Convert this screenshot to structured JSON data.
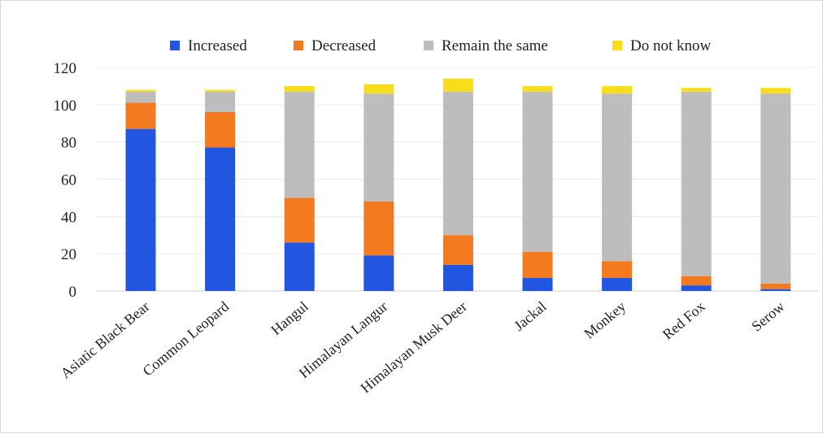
{
  "chart_data": {
    "type": "bar",
    "stacked": true,
    "categories": [
      "Asiatic Black Bear",
      "Common Leopard",
      "Hangul",
      "Himalayan Langur",
      "Himalayan Musk Deer",
      "Jackal",
      "Monkey",
      "Red Fox",
      "Serow"
    ],
    "series": [
      {
        "name": "Increased",
        "color": "#2255e0",
        "values": [
          87,
          77,
          26,
          19,
          14,
          7,
          7,
          3,
          1
        ]
      },
      {
        "name": "Decreased",
        "color": "#f47a20",
        "values": [
          14,
          19,
          24,
          29,
          16,
          14,
          9,
          5,
          3
        ]
      },
      {
        "name": "Remain the same",
        "color": "#bdbdbd",
        "values": [
          6,
          11,
          57,
          58,
          77,
          86,
          90,
          99,
          102
        ]
      },
      {
        "name": "Do not know",
        "color": "#f7dd1a",
        "values": [
          1,
          1,
          3,
          5,
          7,
          3,
          4,
          2,
          3
        ]
      }
    ],
    "yticks": [
      "0",
      "20",
      "40",
      "60",
      "80",
      "100",
      "120"
    ],
    "ylim": [
      0,
      120
    ],
    "legend_position": "top",
    "grid": true
  }
}
